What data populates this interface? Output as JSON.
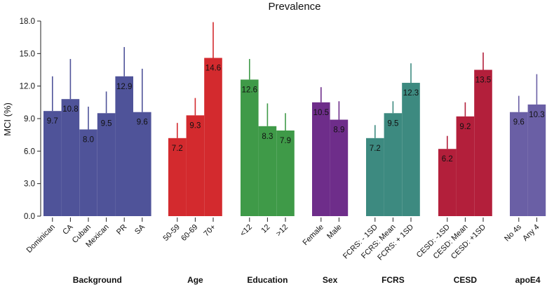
{
  "chart_data": {
    "type": "bar",
    "title": "Prevalence",
    "ylabel": "MCI (%)",
    "xlabel": "",
    "ylim": [
      0,
      18
    ],
    "yticks": [
      "0.0",
      "3.0",
      "6.0",
      "9.0",
      "12.0",
      "15.0",
      "18.0"
    ],
    "grid": false,
    "groups": [
      {
        "name": "Background",
        "color": "#4f5399",
        "bars": [
          {
            "category": "Dominican",
            "value": 9.7,
            "label": "9.7",
            "ci_high": 12.9
          },
          {
            "category": "CA",
            "value": 10.8,
            "label": "10.8",
            "ci_high": 14.5
          },
          {
            "category": "Cuban",
            "value": 8.0,
            "label": "8.0",
            "ci_high": 10.1
          },
          {
            "category": "Mexican",
            "value": 9.5,
            "label": "9.5",
            "ci_high": 11.5
          },
          {
            "category": "PR",
            "value": 12.9,
            "label": "12.9",
            "ci_high": 15.6
          },
          {
            "category": "SA",
            "value": 9.6,
            "label": "9.6",
            "ci_high": 13.6
          }
        ]
      },
      {
        "name": "Age",
        "color": "#d32a2e",
        "bars": [
          {
            "category": "50-59",
            "value": 7.2,
            "label": "7.2",
            "ci_high": 8.6
          },
          {
            "category": "60-69",
            "value": 9.3,
            "label": "9.3",
            "ci_high": 10.9
          },
          {
            "category": "70+",
            "value": 14.6,
            "label": "14.6",
            "ci_high": 17.9
          }
        ]
      },
      {
        "name": "Education",
        "color": "#3f9a48",
        "bars": [
          {
            "category": "<12",
            "value": 12.6,
            "label": "12.6",
            "ci_high": 14.5
          },
          {
            "category": "12",
            "value": 8.3,
            "label": "8.3",
            "ci_high": 10.4
          },
          {
            "category": ">12",
            "value": 7.9,
            "label": "7.9",
            "ci_high": 9.5
          }
        ]
      },
      {
        "name": "Sex",
        "color": "#6e2d8a",
        "bars": [
          {
            "category": "Female",
            "value": 10.5,
            "label": "10.5",
            "ci_high": 11.9
          },
          {
            "category": "Male",
            "value": 8.9,
            "label": "8.9",
            "ci_high": 10.6
          }
        ]
      },
      {
        "name": "FCRS",
        "color": "#3d8a80",
        "bars": [
          {
            "category": "FCRS: - 1SD",
            "value": 7.2,
            "label": "7.2",
            "ci_high": 8.4
          },
          {
            "category": "FCRS: Mean",
            "value": 9.5,
            "label": "9.5",
            "ci_high": 10.6
          },
          {
            "category": "FCRS: + 1SD",
            "value": 12.3,
            "label": "12.3",
            "ci_high": 14.1
          }
        ]
      },
      {
        "name": "CESD",
        "color": "#b31f3b",
        "bars": [
          {
            "category": "CESD: -1SD",
            "value": 6.2,
            "label": "6.2",
            "ci_high": 7.4
          },
          {
            "category": "CESD: Mean",
            "value": 9.2,
            "label": "9.2",
            "ci_high": 10.5
          },
          {
            "category": "CESD: +1SD",
            "value": 13.5,
            "label": "13.5",
            "ci_high": 15.1
          }
        ]
      },
      {
        "name": "apoE4",
        "color": "#6a5fa5",
        "bars": [
          {
            "category": "No 4s",
            "value": 9.6,
            "label": "9.6",
            "ci_high": 11.1
          },
          {
            "category": "Any 4",
            "value": 10.3,
            "label": "10.3",
            "ci_high": 13.1
          }
        ]
      }
    ]
  }
}
